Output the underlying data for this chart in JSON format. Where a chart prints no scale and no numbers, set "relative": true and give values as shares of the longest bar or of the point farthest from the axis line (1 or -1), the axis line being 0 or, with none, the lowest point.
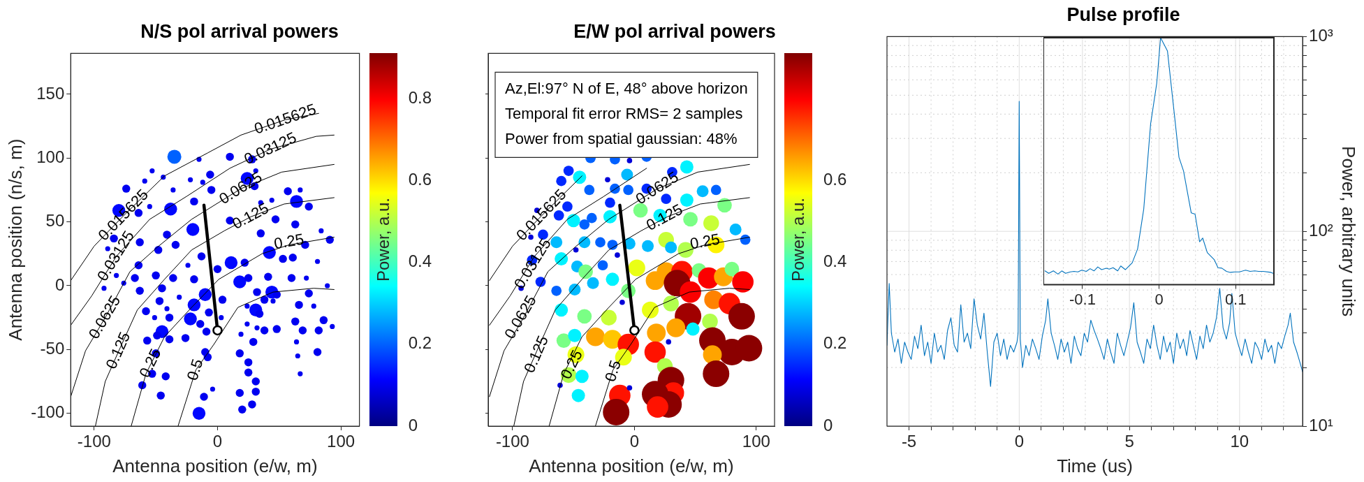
{
  "chart_data": [
    {
      "type": "scatter",
      "title": "N/S pol arrival powers",
      "xlabel": "Antenna position (e/w, m)",
      "ylabel": "Antenna position (n/s, m)",
      "clabel": "Power, a.u.",
      "clim": [
        0,
        0.91
      ],
      "cticks": [
        0,
        0.2,
        0.4,
        0.6,
        0.8
      ],
      "xlim": [
        -119,
        115
      ],
      "xticks": [
        -100,
        0,
        100
      ],
      "ylim": [
        -110,
        182
      ],
      "yticks": [
        -100,
        -50,
        0,
        50,
        100,
        150
      ],
      "series": [
        {
          "type": "scatter",
          "x": [
            -35,
            -15,
            10,
            28,
            -53,
            -44,
            -6,
            24,
            31,
            -74,
            -59,
            -36,
            -22,
            -12,
            -5,
            30,
            57,
            67,
            -80,
            -64,
            -55,
            -38,
            -19,
            35,
            44,
            64,
            74,
            -84,
            -63,
            -41,
            -34,
            -20,
            10,
            35,
            47,
            63,
            84,
            91,
            71,
            -89,
            -64,
            -48,
            -24,
            -13,
            11,
            22,
            42,
            53,
            61,
            81,
            -82,
            -67,
            -50,
            -36,
            -19,
            0,
            18,
            25,
            41,
            60,
            72,
            89,
            -92,
            -76,
            -63,
            -45,
            -10,
            4,
            32,
            44,
            48,
            74,
            -47,
            -31,
            -19,
            24,
            38,
            45,
            66,
            78,
            -58,
            -41,
            -7,
            31,
            34,
            63,
            86,
            93,
            -22,
            -39,
            -51,
            -14,
            3,
            24,
            -45,
            -49,
            -39,
            -9,
            32,
            38,
            48,
            69,
            82,
            -57,
            -26,
            19,
            29,
            -50,
            -10,
            -8,
            18,
            81,
            -53,
            -42,
            25,
            25,
            64,
            65,
            67,
            -61,
            31,
            -46,
            -11,
            -4,
            18,
            31,
            28,
            20,
            -15
          ],
          "values": [
            101,
            99,
            101,
            99,
            90,
            85,
            87,
            84,
            90,
            76,
            82,
            75,
            83,
            81,
            75,
            78,
            74,
            75,
            59,
            57,
            62,
            60,
            66,
            65,
            67,
            66,
            62,
            37,
            34,
            40,
            32,
            44,
            51,
            41,
            52,
            48,
            43,
            36,
            32,
            29,
            16,
            28,
            16,
            23,
            18,
            18,
            26,
            21,
            22,
            19,
            8,
            6,
            8,
            6,
            5,
            13,
            3,
            6,
            7,
            6,
            6,
            0,
            -2,
            2,
            -4,
            -2,
            -7,
            -11,
            -5,
            -5,
            -7,
            -6,
            -12,
            -9,
            -15,
            -16,
            -11,
            -12,
            -15,
            -16,
            -20,
            -18,
            -21,
            -19,
            -22,
            -28,
            -27,
            -32,
            -26,
            -25,
            -25,
            -30,
            -25,
            -30,
            -36,
            -39,
            -42,
            -36,
            -33,
            -35,
            -34,
            -35,
            -35,
            -43,
            -41,
            -38,
            -44,
            -53,
            -52,
            -56,
            -53,
            -52,
            -69,
            -71,
            -60,
            -68,
            -44,
            -55,
            -69,
            -78,
            -75,
            -86,
            -87,
            -81,
            -84,
            -83,
            -93,
            -97,
            -100
          ],
          "sizes": [
            1,
            0.13,
            0.33,
            0.33,
            0.13,
            0.13,
            0.33,
            0.85,
            0.13,
            0.33,
            0.13,
            0.13,
            0.13,
            0.13,
            0.33,
            0.33,
            0.33,
            0.13,
            0.85,
            0.33,
            0.13,
            0.85,
            0.33,
            0.13,
            0.13,
            0.85,
            0.33,
            0.33,
            0.33,
            0.33,
            0.33,
            0.85,
            0.33,
            0.33,
            0.33,
            0.33,
            0.13,
            0.33,
            0.33,
            0.13,
            0.33,
            0.33,
            0.13,
            0.33,
            0.85,
            0.33,
            0.85,
            0.33,
            0.33,
            0.13,
            0.13,
            0.33,
            0.33,
            0.33,
            0.33,
            0.33,
            0.85,
            0.33,
            0.33,
            0.33,
            0.13,
            0.13,
            0.13,
            0.13,
            0.33,
            0.33,
            0.85,
            0.33,
            0.33,
            0.85,
            0.33,
            0.33,
            0.33,
            0.13,
            0.85,
            0.13,
            0.33,
            0.13,
            0.33,
            0.13,
            0.33,
            0.13,
            0.33,
            0.85,
            0.33,
            0.33,
            0.33,
            0.13,
            0.85,
            0.33,
            0.13,
            0.33,
            0.13,
            0.13,
            0.85,
            0.33,
            0.33,
            0.33,
            0.13,
            0.33,
            0.33,
            0.33,
            0.33,
            0.33,
            0.33,
            0.13,
            0.33,
            0.33,
            0.33,
            0.33,
            0.33,
            0.33,
            0.33,
            0.33,
            0.33,
            0.33,
            0.13,
            0.13,
            0.13,
            0.33,
            0.33,
            0.33,
            0.33,
            0.13,
            0.33,
            0.33,
            0.33,
            0.33,
            0.85
          ],
          "colors": [
            "#0061ff",
            "#0000f0",
            "#0000f0",
            "#0000f0",
            "#0000f0",
            "#0000f0",
            "#0000f0",
            "#0007ff",
            "#0000f0",
            "#0000f0",
            "#0000f0",
            "#0000f0",
            "#0000f0",
            "#0000f0",
            "#0000f0",
            "#0000f0",
            "#0000f0",
            "#0000f0",
            "#0007ff",
            "#0000f0",
            "#0000f0",
            "#0007ff",
            "#0000f0",
            "#0000f0",
            "#0000f0",
            "#0007ff",
            "#0000f0",
            "#0000f0",
            "#0000f0",
            "#0000f0",
            "#0000f0",
            "#0007ff",
            "#0000f0",
            "#0000f0",
            "#0000f0",
            "#0000f0",
            "#0000f0",
            "#0000f0",
            "#0000f0",
            "#0000f0",
            "#0000f0",
            "#0000f0",
            "#0000f0",
            "#0000f0",
            "#0007ff",
            "#0000f0",
            "#0007ff",
            "#0000f0",
            "#0000f0",
            "#0000f0",
            "#0000f0",
            "#0000f0",
            "#0000f0",
            "#0000f0",
            "#0000f0",
            "#0000f0",
            "#0007ff",
            "#0000f0",
            "#0000f0",
            "#0000f0",
            "#0000f0",
            "#0000f0",
            "#0000f0",
            "#0000f0",
            "#0000f0",
            "#0000f0",
            "#0007ff",
            "#0000f0",
            "#0000f0",
            "#0007ff",
            "#0000f0",
            "#0000f0",
            "#0000f0",
            "#0000f0",
            "#0007ff",
            "#0000f0",
            "#0000f0",
            "#0000f0",
            "#0000f0",
            "#0000f0",
            "#0000f0",
            "#0000f0",
            "#0000f0",
            "#0007ff",
            "#0000f0",
            "#0000f0",
            "#0000f0",
            "#0000f0",
            "#0007ff",
            "#0000f0",
            "#0000f0",
            "#0000f0",
            "#0000f0",
            "#0000f0",
            "#0007ff",
            "#0000f0",
            "#0000f0",
            "#0000f0",
            "#0000f0",
            "#0000f0",
            "#0000f0",
            "#0000f0",
            "#0000f0",
            "#0000f0",
            "#0000f0",
            "#0000f0",
            "#0000f0",
            "#0000f0",
            "#0000f0",
            "#0000f0",
            "#0000f0",
            "#0000f0",
            "#0000f0",
            "#0000f0",
            "#0000f0",
            "#0000f0",
            "#0000f0",
            "#0000f0",
            "#0000f0",
            "#0000f0",
            "#0000f0",
            "#0000f0",
            "#0000f0",
            "#0000f0",
            "#0000f0",
            "#0000f0",
            "#0000f0",
            "#0000f0",
            "#0007ff"
          ]
        },
        {
          "type": "line",
          "color": "#000000",
          "x": [
            -32,
            -17.6,
            -3,
            16.5,
            45,
            78,
            94.5
          ],
          "values": [
            -110,
            -66,
            -46,
            -17,
            -5,
            -2,
            -3
          ]
        },
        {
          "type": "line",
          "color": "#000000",
          "x": [
            -70,
            -58,
            -43,
            -21,
            1,
            36,
            58,
            94.5
          ],
          "values": [
            -110,
            -69,
            -40,
            -17,
            5,
            25,
            32,
            38
          ]
        },
        {
          "type": "line",
          "color": "#000000",
          "x": [
            -99,
            -91,
            -80,
            -65,
            -43,
            -21,
            5.5,
            27,
            54,
            94.5
          ],
          "values": [
            -110,
            -75,
            -51,
            -19,
            5,
            28,
            43,
            54,
            64,
            69
          ]
        },
        {
          "type": "line",
          "color": "#000000",
          "x": [
            -119,
            -107,
            -91,
            -71,
            -49,
            -21,
            19,
            52,
            94.5
          ],
          "values": [
            -87,
            -51,
            -25,
            11,
            30,
            52,
            76,
            89,
            95
          ]
        },
        {
          "type": "line",
          "color": "#000000",
          "x": [
            -119,
            -102,
            -82,
            -55,
            -25,
            10,
            43,
            80,
            94.5
          ],
          "values": [
            -31,
            -8,
            23,
            52,
            70,
            92,
            107,
            117,
            118
          ]
        },
        {
          "type": "line",
          "color": "#000000",
          "x": [
            -119,
            -100,
            -76,
            -43,
            -8,
            19,
            55,
            82
          ],
          "values": [
            4,
            31,
            55,
            86,
            104,
            118,
            130,
            135
          ]
        },
        {
          "type": "line",
          "color": "#000000",
          "x": [
            -11,
            0
          ],
          "values": [
            63,
            -35
          ]
        },
        {
          "type": "scatter",
          "color": "#000000",
          "marker": "circle",
          "x": [
            0
          ],
          "values": [
            -35
          ]
        }
      ],
      "annotations": [
        {
          "text": "0.015625",
          "x": -76,
          "y": 55
        },
        {
          "text": "0.015625",
          "x": 55,
          "y": 130
        },
        {
          "text": "0.03125",
          "x": -82,
          "y": 23
        },
        {
          "text": "0.03125",
          "x": 43,
          "y": 107
        },
        {
          "text": "0.0625",
          "x": -91,
          "y": -25
        },
        {
          "text": "0.0625",
          "x": 19,
          "y": 76
        },
        {
          "text": "0.125",
          "x": -80,
          "y": -51
        },
        {
          "text": "0.125",
          "x": 27,
          "y": 54
        },
        {
          "text": "0.25",
          "x": -54,
          "y": -61
        },
        {
          "text": "0.25",
          "x": 58,
          "y": 34
        },
        {
          "text": "0.5",
          "x": -17.6,
          "y": -66
        }
      ]
    },
    {
      "type": "scatter",
      "title": "E/W pol arrival powers",
      "xlabel": "Antenna position (e/w, m)",
      "clabel": "Power, a.u.",
      "clim": [
        0,
        0.91
      ],
      "cticks": [
        0,
        0.2,
        0.4,
        0.6
      ],
      "xlim": [
        -120,
        115
      ],
      "xticks": [
        -100,
        0,
        100
      ],
      "ylim": [
        -110,
        182
      ],
      "yticks": [
        -100,
        -50,
        0,
        50,
        100,
        150
      ],
      "tick_labels": "x",
      "series": [
        {
          "type": "scatter",
          "x": [
            -36,
            -16,
            -4,
            10,
            43,
            -54,
            -45,
            -22,
            -6,
            31,
            -60,
            -37,
            -16,
            -5,
            10,
            56,
            67,
            -80,
            -62,
            -55,
            -50,
            -41,
            -35,
            -20,
            -20,
            5,
            21,
            26,
            43,
            46,
            63,
            74,
            83,
            91,
            -85,
            -75,
            -64,
            -48,
            -41,
            -28,
            -18,
            -4,
            11,
            26,
            30,
            42,
            67,
            -84,
            -60,
            -47,
            -40,
            -26,
            -14,
            2,
            26,
            39,
            53,
            61,
            73,
            80,
            89,
            -93,
            -77,
            -64,
            -49,
            -34,
            -18,
            -5,
            17,
            35,
            46,
            65,
            78,
            88,
            -60,
            -41,
            -21,
            -10,
            13,
            30,
            44,
            62,
            -58,
            -49,
            -32,
            -18,
            -5,
            18,
            34,
            48,
            64,
            80,
            94,
            -48,
            -9,
            17,
            28,
            25,
            64,
            67,
            -54,
            -43,
            -61,
            -46,
            -12,
            -4,
            30,
            32,
            17,
            28,
            19,
            -15
          ],
          "values": [
            100,
            99,
            98,
            101,
            93,
            90,
            85,
            83,
            87,
            89,
            82,
            75,
            76,
            75,
            76,
            74,
            75,
            59,
            55,
            62,
            51,
            48,
            53,
            65,
            54,
            59,
            55,
            68,
            67,
            52,
            49,
            63,
            44,
            36,
            38,
            40,
            34,
            28,
            34,
            34,
            32,
            33,
            31,
            36,
            30,
            28,
            32,
            20,
            21,
            15,
            11,
            16,
            24,
            14,
            11,
            11,
            12,
            6,
            7,
            13,
            3,
            -2,
            3,
            -4,
            -3,
            2,
            5,
            -4,
            4,
            2,
            -5,
            -11,
            -14,
            -24,
            -19,
            -24,
            -25,
            -13,
            -19,
            -14,
            -24,
            -28,
            -43,
            -39,
            -40,
            -42,
            -46,
            -37,
            -33,
            -34,
            -43,
            -52,
            -49,
            -54,
            -56,
            -52,
            -44,
            -63,
            -54,
            -69,
            -70,
            -71,
            -78,
            -86,
            -86,
            -80,
            -74,
            -84,
            -85,
            -93,
            -95,
            -99
          ],
          "sizes": [
            0.15,
            0.15,
            0.04,
            0.15,
            0.25,
            0.15,
            0.25,
            0.04,
            0.2,
            0.15,
            0.15,
            0.15,
            0.15,
            0.15,
            0.15,
            0.2,
            0.15,
            0.04,
            0.15,
            0.15,
            0.25,
            0.15,
            0.15,
            0.15,
            0.25,
            0.3,
            0.25,
            0.15,
            0.25,
            0.3,
            0.35,
            0.3,
            0.2,
            0.15,
            0.04,
            0.15,
            0.2,
            0.04,
            0.2,
            0.15,
            0.15,
            0.2,
            0.2,
            0.35,
            0.2,
            0.35,
            0.4,
            0.15,
            0.25,
            0.2,
            0.3,
            0.15,
            0.04,
            0.4,
            0.5,
            0.65,
            0.3,
            0.65,
            0.5,
            0.3,
            0.65,
            0.04,
            0.15,
            0.15,
            0.2,
            0.2,
            0.25,
            0.3,
            0.5,
            1,
            0.65,
            0.5,
            0.65,
            1,
            0.25,
            0.3,
            0.35,
            0.04,
            0.4,
            0.35,
            1,
            0.35,
            0.3,
            0.25,
            0.5,
            0.5,
            0.65,
            0.5,
            0.5,
            0.25,
            1,
            1,
            1,
            0.4,
            0.4,
            0.65,
            0.04,
            0.35,
            0.5,
            1,
            0.35,
            0.25,
            0.04,
            0.25,
            0.65,
            0.04,
            1,
            0.65,
            1,
            1,
            0.65,
            1
          ],
          "colors": [
            "#0061ff",
            "#0061ff",
            "#0000d9",
            "#0061ff",
            "#00f2ff",
            "#0028ff",
            "#00f2ff",
            "#0000d9",
            "#00baff",
            "#0028ff",
            "#0028ff",
            "#0061ff",
            "#0061ff",
            "#0061ff",
            "#0028ff",
            "#00baff",
            "#0061ff",
            "#0000d9",
            "#0028ff",
            "#0028ff",
            "#00f2ff",
            "#0061ff",
            "#0061ff",
            "#0028ff",
            "#00f2ff",
            "#7aff85",
            "#00f2ff",
            "#0028ff",
            "#00f2ff",
            "#7aff85",
            "#c8ff37",
            "#7aff85",
            "#00baff",
            "#0061ff",
            "#0000d9",
            "#0028ff",
            "#00baff",
            "#0000d9",
            "#00baff",
            "#0061ff",
            "#0061ff",
            "#00baff",
            "#00baff",
            "#c8ff37",
            "#00baff",
            "#b2ff4d",
            "#fff300",
            "#0028ff",
            "#00f2ff",
            "#00baff",
            "#7aff85",
            "#0061ff",
            "#0000d9",
            "#eaff15",
            "#ffa400",
            "#ff1200",
            "#7aff85",
            "#fb0000",
            "#ffa400",
            "#7aff85",
            "#fb0000",
            "#0000d9",
            "#0028ff",
            "#0061ff",
            "#00baff",
            "#00baff",
            "#00f2ff",
            "#7aff85",
            "#ffa400",
            "#8b0000",
            "#fb0000",
            "#ff8200",
            "#ff1200",
            "#8b0000",
            "#00f2ff",
            "#7aff85",
            "#c8ff37",
            "#0000d9",
            "#eaff15",
            "#b2ff4d",
            "#a10000",
            "#b2ff4d",
            "#7aff85",
            "#00f2ff",
            "#ffa400",
            "#ffc600",
            "#ff1200",
            "#ffa400",
            "#ffa400",
            "#00f2ff",
            "#8b0000",
            "#8b0000",
            "#8b0000",
            "#eaff15",
            "#eaff15",
            "#ff1200",
            "#0000d9",
            "#b2ff4d",
            "#ffa400",
            "#8b0000",
            "#b2ff4d",
            "#00f2ff",
            "#0000d9",
            "#00f2ff",
            "#ff1200",
            "#0000d9",
            "#8b0000",
            "#ff1200",
            "#8b0000",
            "#8b0000",
            "#ff1200",
            "#8b0000"
          ]
        },
        {
          "type": "line",
          "color": "#000000",
          "x": [
            -32,
            -17.6,
            -3,
            16.5,
            45,
            78,
            94.5
          ],
          "values": [
            -110,
            -66,
            -46,
            -17,
            -5,
            -2,
            -3
          ]
        },
        {
          "type": "line",
          "color": "#000000",
          "x": [
            -70,
            -58,
            -43,
            -21,
            1,
            36,
            58,
            94.5
          ],
          "values": [
            -110,
            -69,
            -40,
            -17,
            5,
            25,
            32,
            38
          ]
        },
        {
          "type": "line",
          "color": "#000000",
          "x": [
            -99,
            -91,
            -80,
            -65,
            -43,
            -21,
            5.5,
            27,
            54,
            94.5
          ],
          "values": [
            -110,
            -75,
            -51,
            -19,
            5,
            28,
            43,
            54,
            64,
            69
          ]
        },
        {
          "type": "line",
          "color": "#000000",
          "x": [
            -119,
            -107,
            -91,
            -71,
            -49,
            -21,
            19,
            52,
            94.5
          ],
          "values": [
            -87,
            -51,
            -25,
            11,
            30,
            52,
            76,
            89,
            95
          ]
        },
        {
          "type": "line",
          "color": "#000000",
          "x": [
            -119,
            -102,
            -82,
            -55,
            -25,
            10
          ],
          "values": [
            -31,
            -8,
            23,
            52,
            70,
            92
          ]
        },
        {
          "type": "line",
          "color": "#000000",
          "x": [
            -119,
            -100,
            -76,
            -43
          ],
          "values": [
            4,
            31,
            55,
            86
          ]
        },
        {
          "type": "line",
          "color": "#000000",
          "x": [
            -12,
            0
          ],
          "values": [
            63,
            -35
          ]
        },
        {
          "type": "scatter",
          "color": "#000000",
          "marker": "circle",
          "x": [
            0
          ],
          "values": [
            -35
          ]
        }
      ],
      "annotations": [
        "Az,El:97° N of E, 48° above horizon",
        "Temporal fit error RMS= 2 samples",
        "Power from spatial gaussian: 48%",
        {
          "text": "0.015625",
          "x": -76,
          "y": 55
        },
        {
          "text": "0.03125",
          "x": -83,
          "y": 17
        },
        {
          "text": "0.0625",
          "x": -93,
          "y": -25
        },
        {
          "text": "0.125",
          "x": -80,
          "y": -54
        },
        {
          "text": "0.25",
          "x": -51,
          "y": -62
        },
        {
          "text": "0.5",
          "x": -17,
          "y": -67
        },
        {
          "text": "0.0625",
          "x": 19,
          "y": 76
        },
        {
          "text": "0.125",
          "x": 25,
          "y": 53
        },
        {
          "text": "0.25",
          "x": 58,
          "y": 34
        }
      ]
    },
    {
      "type": "line",
      "title": "Pulse profile",
      "xlabel": "Time (us)",
      "ylabel": "Power, arbitrary units",
      "log": "y",
      "grid": true,
      "xlim": [
        -6,
        12.86
      ],
      "xticks": [
        -5,
        {
          "value": -4,
          "label": null
        },
        {
          "value": -3,
          "label": null
        },
        {
          "value": -2,
          "label": null
        },
        {
          "value": -1,
          "label": null
        },
        0,
        {
          "value": 1,
          "label": null
        },
        {
          "value": 2,
          "label": null
        },
        {
          "value": 3,
          "label": null
        },
        {
          "value": 4,
          "label": null
        },
        5,
        {
          "value": 6,
          "label": null
        },
        {
          "value": 7,
          "label": null
        },
        {
          "value": 8,
          "label": null
        },
        {
          "value": 9,
          "label": null
        },
        10,
        {
          "value": 11,
          "label": null
        },
        {
          "value": 12,
          "label": null
        }
      ],
      "ylim": [
        10,
        1000
      ],
      "yticks": [
        {
          "value": 10,
          "label": "10¹"
        },
        {
          "value": 20,
          "label": null
        },
        {
          "value": 30,
          "label": null
        },
        {
          "value": 40,
          "label": null
        },
        {
          "value": 50,
          "label": null
        },
        {
          "value": 60,
          "label": null
        },
        {
          "value": 70,
          "label": null
        },
        {
          "value": 80,
          "label": null
        },
        {
          "value": 90,
          "label": null
        },
        {
          "value": 100,
          "label": "10²"
        },
        {
          "value": 200,
          "label": null
        },
        {
          "value": 300,
          "label": null
        },
        {
          "value": 400,
          "label": null
        },
        {
          "value": 500,
          "label": null
        },
        {
          "value": 600,
          "label": null
        },
        {
          "value": 700,
          "label": null
        },
        {
          "value": 800,
          "label": null
        },
        {
          "value": 900,
          "label": null
        },
        {
          "value": 1000,
          "label": "10³"
        }
      ],
      "series": [
        {
          "color": "#0072bd",
          "x": [
            -6,
            -5.9,
            -5.8,
            -5.65,
            -5.5,
            -5.35,
            -5.2,
            -5.05,
            -4.9,
            -4.75,
            -4.6,
            -4.45,
            -4.3,
            -4.15,
            -4,
            -3.85,
            -3.7,
            -3.55,
            -3.4,
            -3.25,
            -3.1,
            -2.95,
            -2.8,
            -2.65,
            -2.5,
            -2.35,
            -2.2,
            -2.05,
            -1.9,
            -1.75,
            -1.6,
            -1.45,
            -1.3,
            -1.15,
            -1,
            -0.85,
            -0.7,
            -0.55,
            -0.4,
            -0.25,
            -0.1,
            -0.05,
            0,
            0.05,
            0.15,
            0.3,
            0.45,
            0.6,
            0.75,
            0.9,
            1.05,
            1.2,
            1.3,
            1.45,
            1.6,
            1.75,
            1.9,
            2.05,
            2.2,
            2.35,
            2.5,
            2.65,
            2.8,
            2.95,
            3.1,
            3.25,
            3.4,
            3.55,
            3.7,
            3.85,
            4,
            4.15,
            4.3,
            4.45,
            4.6,
            4.75,
            4.9,
            5.05,
            5.2,
            5.35,
            5.5,
            5.65,
            5.8,
            5.95,
            6.1,
            6.25,
            6.4,
            6.55,
            6.7,
            6.85,
            7,
            7.15,
            7.3,
            7.45,
            7.6,
            7.75,
            7.9,
            8.05,
            8.2,
            8.35,
            8.5,
            8.65,
            8.8,
            8.95,
            9.1,
            9.25,
            9.4,
            9.55,
            9.65,
            9.8,
            9.95,
            10.1,
            10.25,
            10.4,
            10.55,
            10.7,
            10.85,
            11,
            11.15,
            11.3,
            11.45,
            11.6,
            11.75,
            11.9,
            12.05,
            12.2,
            12.3,
            12.45,
            12.6,
            12.75,
            12.86
          ],
          "values": [
            26,
            54,
            30,
            24,
            28,
            21,
            27,
            24,
            22,
            29,
            25,
            33,
            23,
            27,
            21,
            30,
            24,
            26,
            22,
            31,
            36,
            26,
            24,
            42,
            27,
            30,
            25,
            45,
            33,
            28,
            38,
            24,
            16,
            27,
            30,
            23,
            28,
            22,
            26,
            24,
            27,
            30,
            465,
            28,
            20,
            26,
            23,
            28,
            25,
            22,
            29,
            35,
            45,
            30,
            26,
            22,
            28,
            24,
            27,
            21,
            29,
            25,
            23,
            30,
            27,
            35,
            31,
            28,
            25,
            22,
            28,
            24,
            21,
            30,
            26,
            23,
            27,
            32,
            43,
            27,
            24,
            21,
            28,
            25,
            33,
            26,
            22,
            29,
            24,
            27,
            21,
            30,
            25,
            28,
            23,
            31,
            26,
            22,
            29,
            25,
            33,
            27,
            30,
            36,
            51,
            32,
            28,
            34,
            48,
            30,
            26,
            23,
            28,
            24,
            21,
            27,
            25,
            22,
            28,
            24,
            26,
            21,
            27,
            25,
            29,
            33,
            38,
            27,
            24,
            21,
            19
          ]
        }
      ]
    },
    {
      "type": "line",
      "relative": true,
      "grid": "x",
      "xlim": [
        -0.151,
        0.15
      ],
      "xticks": [
        -0.1,
        0,
        0.1
      ],
      "series": [
        {
          "color": "#0072bd",
          "x": [
            -0.149,
            -0.144,
            -0.138,
            -0.132,
            -0.127,
            -0.122,
            -0.116,
            -0.111,
            -0.106,
            -0.101,
            -0.095,
            -0.09,
            -0.085,
            -0.08,
            -0.075,
            -0.069,
            -0.065,
            -0.06,
            -0.054,
            -0.05,
            -0.044,
            -0.035,
            -0.028,
            -0.02,
            -0.011,
            -0.003,
            0.002,
            0.011,
            0.02,
            0.026,
            0.032,
            0.042,
            0.047,
            0.053,
            0.057,
            0.063,
            0.072,
            0.077,
            0.082,
            0.088,
            0.093,
            0.099,
            0.105,
            0.113,
            0.119,
            0.125,
            0.13,
            0.136,
            0.146,
            0.149
          ],
          "values": [
            0.056,
            0.046,
            0.056,
            0.043,
            0.056,
            0.046,
            0.052,
            0.054,
            0.052,
            0.059,
            0.054,
            0.065,
            0.056,
            0.072,
            0.061,
            0.067,
            0.063,
            0.069,
            0.056,
            0.076,
            0.061,
            0.089,
            0.145,
            0.306,
            0.651,
            0.816,
            1,
            0.946,
            0.69,
            0.516,
            0.46,
            0.291,
            0.286,
            0.174,
            0.189,
            0.13,
            0.102,
            0.069,
            0.067,
            0.054,
            0.05,
            0.052,
            0.052,
            0.059,
            0.054,
            0.056,
            0.054,
            0.054,
            0.05,
            0.046
          ]
        }
      ]
    }
  ]
}
